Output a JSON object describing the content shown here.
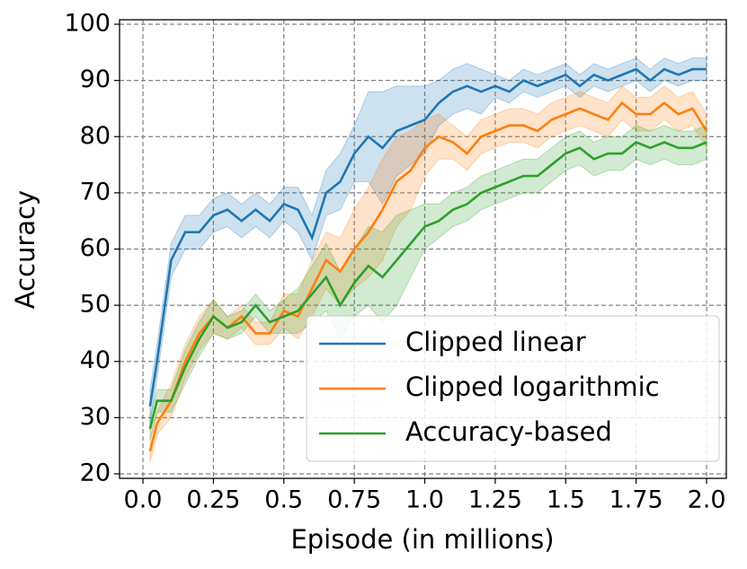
{
  "chart_data": {
    "type": "line",
    "xlabel": "Episode (in millions)",
    "ylabel": "Accuracy",
    "x": [
      0.025,
      0.05,
      0.1,
      0.15,
      0.2,
      0.25,
      0.3,
      0.35,
      0.4,
      0.45,
      0.5,
      0.55,
      0.6,
      0.65,
      0.7,
      0.75,
      0.8,
      0.85,
      0.9,
      0.95,
      1.0,
      1.05,
      1.1,
      1.15,
      1.2,
      1.25,
      1.3,
      1.35,
      1.4,
      1.45,
      1.5,
      1.55,
      1.6,
      1.65,
      1.7,
      1.75,
      1.8,
      1.85,
      1.9,
      1.95,
      2.0
    ],
    "series": [
      {
        "name": "Clipped linear",
        "color": "#1f77b4",
        "values": [
          32,
          40,
          58,
          63,
          63,
          66,
          67,
          65,
          67,
          65,
          68,
          67,
          62,
          70,
          72,
          77,
          80,
          78,
          81,
          82,
          83,
          86,
          88,
          89,
          88,
          89,
          88,
          90,
          89,
          90,
          91,
          89,
          91,
          90,
          91,
          92,
          90,
          92,
          91,
          92,
          92
        ],
        "lower": [
          29,
          37,
          55,
          60,
          60,
          63,
          64,
          62,
          64,
          62,
          65,
          63,
          58,
          66,
          67,
          72,
          72,
          68,
          73,
          75,
          77,
          82,
          84,
          85,
          84,
          87,
          86,
          88,
          87,
          88,
          89,
          87,
          89,
          88,
          89,
          90,
          88,
          90,
          89,
          90,
          90
        ],
        "upper": [
          35,
          43,
          61,
          66,
          66,
          69,
          70,
          68,
          70,
          68,
          71,
          71,
          66,
          74,
          77,
          82,
          88,
          88,
          89,
          89,
          89,
          90,
          92,
          93,
          92,
          91,
          90,
          92,
          91,
          92,
          93,
          91,
          93,
          92,
          93,
          94,
          92,
          94,
          93,
          94,
          94
        ]
      },
      {
        "name": "Clipped logarithmic",
        "color": "#ff7f0e",
        "values": [
          24,
          29,
          33,
          40,
          45,
          48,
          46,
          48,
          45,
          45,
          49,
          48,
          53,
          58,
          56,
          60,
          63,
          67,
          72,
          74,
          78,
          80,
          79,
          77,
          80,
          81,
          82,
          82,
          81,
          83,
          84,
          85,
          84,
          83,
          86,
          84,
          84,
          86,
          84,
          85,
          81
        ],
        "lower": [
          22,
          27,
          30,
          37,
          42,
          45,
          44,
          46,
          43,
          43,
          46,
          44,
          48,
          53,
          50,
          53,
          55,
          58,
          64,
          67,
          73,
          76,
          76,
          74,
          77,
          78,
          79,
          79,
          78,
          80,
          81,
          82,
          81,
          80,
          83,
          81,
          81,
          83,
          81,
          82,
          78
        ],
        "upper": [
          26,
          31,
          36,
          43,
          48,
          51,
          48,
          50,
          47,
          47,
          52,
          52,
          58,
          63,
          62,
          67,
          71,
          76,
          80,
          81,
          83,
          84,
          82,
          80,
          83,
          84,
          85,
          85,
          84,
          86,
          87,
          88,
          87,
          86,
          89,
          87,
          87,
          89,
          87,
          88,
          84
        ]
      },
      {
        "name": "Accuracy-based",
        "color": "#2ca02c",
        "values": [
          28,
          33,
          33,
          39,
          44,
          48,
          46,
          47,
          50,
          47,
          48,
          49,
          52,
          55,
          50,
          54,
          57,
          55,
          58,
          61,
          64,
          65,
          67,
          68,
          70,
          71,
          72,
          73,
          73,
          75,
          77,
          78,
          76,
          77,
          77,
          79,
          78,
          79,
          78,
          78,
          79
        ],
        "lower": [
          26,
          31,
          31,
          36,
          41,
          45,
          44,
          45,
          48,
          45,
          45,
          45,
          47,
          49,
          44,
          48,
          50,
          47,
          50,
          55,
          60,
          62,
          64,
          65,
          67,
          68,
          69,
          70,
          70,
          72,
          74,
          75,
          73,
          74,
          74,
          76,
          75,
          76,
          75,
          75,
          76
        ],
        "upper": [
          30,
          35,
          35,
          42,
          47,
          51,
          48,
          49,
          52,
          49,
          51,
          53,
          57,
          61,
          56,
          60,
          64,
          63,
          66,
          67,
          68,
          68,
          70,
          71,
          73,
          74,
          75,
          76,
          76,
          78,
          80,
          81,
          79,
          80,
          80,
          82,
          81,
          82,
          81,
          81,
          82
        ]
      }
    ],
    "xlim": [
      -0.083,
      2.07
    ],
    "ylim": [
      19.2,
      100.8
    ],
    "xticks": [
      {
        "value": 0.0,
        "label": "0.0"
      },
      0.25,
      {
        "value": 0.5,
        "label": "0.5"
      },
      0.75,
      {
        "value": 1.0,
        "label": "1.0"
      },
      1.25,
      {
        "value": 1.5,
        "label": "1.5"
      },
      1.75,
      {
        "value": 2.0,
        "label": "2.0"
      }
    ],
    "yticks": [
      20,
      30,
      40,
      50,
      60,
      70,
      80,
      90,
      100
    ],
    "grid": true,
    "legend": "lower right"
  }
}
